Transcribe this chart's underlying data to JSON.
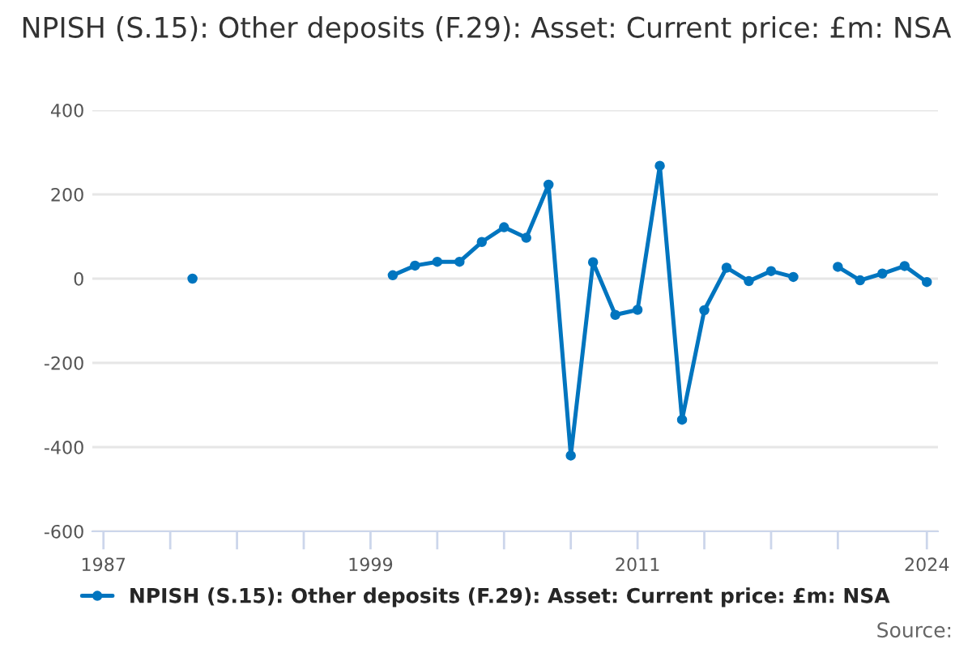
{
  "chart_data": {
    "type": "line",
    "title": "NPISH (S.15): Other deposits (F.29): Asset: Current price: £m: NSA",
    "x": [
      1991,
      1992,
      1993,
      1994,
      1995,
      1996,
      1997,
      1998,
      1999,
      2000,
      2001,
      2002,
      2003,
      2004,
      2005,
      2006,
      2007,
      2008,
      2009,
      2010,
      2011,
      2012,
      2013,
      2014,
      2015,
      2016,
      2017,
      2018,
      2019,
      2020,
      2021,
      2022,
      2023,
      2024
    ],
    "series": [
      {
        "name": "NPISH (S.15): Other deposits (F.29): Asset: Current price: £m: NSA",
        "color": "#0075bf",
        "values": [
          0,
          null,
          null,
          null,
          null,
          null,
          null,
          null,
          null,
          8,
          31,
          40,
          40,
          87,
          122,
          97,
          223,
          -420,
          39,
          -86,
          -74,
          268,
          -335,
          -75,
          26,
          -6,
          18,
          4,
          null,
          28,
          -4,
          12,
          30,
          -8
        ]
      }
    ],
    "xlim": [
      1986.5,
      2024.5
    ],
    "xticks": [
      1987,
      {
        "value": 1990,
        "label": null
      },
      {
        "value": 1993,
        "label": null
      },
      {
        "value": 1996,
        "label": null
      },
      1999,
      {
        "value": 2002,
        "label": null
      },
      {
        "value": 2005,
        "label": null
      },
      {
        "value": 2008,
        "label": null
      },
      2011,
      {
        "value": 2014,
        "label": null
      },
      {
        "value": 2017,
        "label": null
      },
      {
        "value": 2020,
        "label": null
      },
      2024
    ],
    "ylim": [
      -600,
      400
    ],
    "yticks": [
      -600,
      -400,
      -200,
      0,
      200,
      400
    ],
    "grid": "y",
    "legend": "bottom",
    "marker": "circle",
    "line_style": "solid",
    "annotations": [
      "Source:"
    ]
  }
}
